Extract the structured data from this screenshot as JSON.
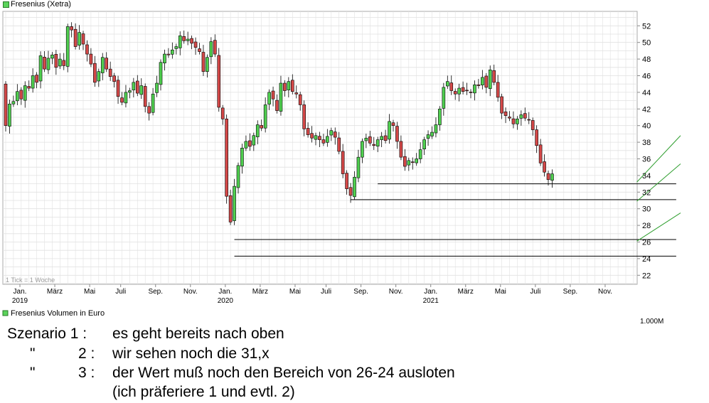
{
  "header": {
    "price_legend": "Fresenius (Xetra)"
  },
  "volume": {
    "legend": "Fresenius Volumen in Euro",
    "axis_label": "1.000M"
  },
  "note": "1 Tick = 1 Woche",
  "colors": {
    "up": "#4fcf4f",
    "down": "#d44848",
    "grid": "#e1e1e1",
    "trendline": "#2e9e2e"
  },
  "chart_data": {
    "type": "candlestick",
    "title": "Fresenius (Xetra)",
    "ylim": [
      21,
      54
    ],
    "y_ticks": [
      22,
      24,
      26,
      28,
      30,
      32,
      34,
      36,
      38,
      40,
      42,
      44,
      46,
      48,
      50,
      52
    ],
    "x_month_ticks": [
      {
        "label": "Jan.",
        "index": 0
      },
      {
        "label": "März",
        "index": 9
      },
      {
        "label": "Mai",
        "index": 18
      },
      {
        "label": "Juli",
        "index": 26
      },
      {
        "label": "Sep.",
        "index": 35
      },
      {
        "label": "Nov.",
        "index": 44
      },
      {
        "label": "Jan.",
        "index": 53
      },
      {
        "label": "März",
        "index": 62
      },
      {
        "label": "Mai",
        "index": 71
      },
      {
        "label": "Juli",
        "index": 79
      },
      {
        "label": "Sep.",
        "index": 88
      },
      {
        "label": "Nov.",
        "index": 97
      },
      {
        "label": "Jan.",
        "index": 106
      },
      {
        "label": "März",
        "index": 115
      },
      {
        "label": "Mai",
        "index": 124
      },
      {
        "label": "Juli",
        "index": 133
      },
      {
        "label": "Sep.",
        "index": 142
      },
      {
        "label": "Nov.",
        "index": 151
      }
    ],
    "x_year_ticks": [
      {
        "label": "2019",
        "index": 0
      },
      {
        "label": "2020",
        "index": 53
      },
      {
        "label": "2021",
        "index": 106
      }
    ],
    "close": [
      40.0,
      42.6,
      42.9,
      44.1,
      43.2,
      44.8,
      44.5,
      46.0,
      45.2,
      48.4,
      46.8,
      48.1,
      48.5,
      47.0,
      48.0,
      47.2,
      51.9,
      51.5,
      49.5,
      51.2,
      49.8,
      48.6,
      47.4,
      45.2,
      46.5,
      48.2,
      46.8,
      45.9,
      45.3,
      43.5,
      42.8,
      44.0,
      44.2,
      45.2,
      43.9,
      44.8,
      42.3,
      41.5,
      43.8,
      45.1,
      47.6,
      48.6,
      48.5,
      49.1,
      49.5,
      50.8,
      50.2,
      50.4,
      49.9,
      49.4,
      48.9,
      46.5,
      48.2,
      50.1,
      48.6,
      42.2,
      40.8,
      31.5,
      28.4,
      32.7,
      35.2,
      37.3,
      38.1,
      37.5,
      38.8,
      40.1,
      39.7,
      42.5,
      44.0,
      43.2,
      41.8,
      45.1,
      44.2,
      45.3,
      44.1,
      43.8,
      42.5,
      39.6,
      38.9,
      38.5,
      38.8,
      38.3,
      37.9,
      38.7,
      39.4,
      38.6,
      36.9,
      34.2,
      32.4,
      31.6,
      33.8,
      36.2,
      38.1,
      38.5,
      37.9,
      37.6,
      38.3,
      38.7,
      38.2,
      40.5,
      40.0,
      38.1,
      36.2,
      35.1,
      35.8,
      35.6,
      36.0,
      37.1,
      38.3,
      38.9,
      39.2,
      40.1,
      42.0,
      44.6,
      45.3,
      44.2,
      43.8,
      44.5,
      44.1,
      44.2,
      44.0,
      44.9,
      44.8,
      45.8,
      44.6,
      46.7,
      45.2,
      43.4,
      41.5,
      41.2,
      40.9,
      40.2,
      40.8,
      41.3,
      40.9,
      40.7,
      39.5,
      37.6,
      35.5,
      34.4,
      33.5,
      34.2
    ],
    "support_lines": [
      {
        "label": "33",
        "value": 33.0,
        "from_index": 96,
        "to_index": 162
      },
      {
        "label": "31,x",
        "value": 31.1,
        "from_index": 89,
        "to_index": 162
      },
      {
        "label": "26",
        "value": 26.3,
        "from_index": 59,
        "to_index": 162
      },
      {
        "label": "24",
        "value": 24.3,
        "from_index": 59,
        "to_index": 162
      }
    ],
    "scenario_lines": [
      {
        "from": [
          150,
          33.2
        ],
        "to": [
          162,
          38.8
        ]
      },
      {
        "from": [
          150,
          30.9
        ],
        "to": [
          162,
          35.4
        ]
      },
      {
        "from": [
          150,
          26.1
        ],
        "to": [
          162,
          29.5
        ]
      }
    ]
  },
  "scenarios": [
    {
      "label": "Szenario 1 :",
      "text": "es geht bereits nach oben"
    },
    {
      "label": "\"",
      "number": "2 :",
      "text": "wir sehen noch die 31,x"
    },
    {
      "label": "\"",
      "number": "3 :",
      "text": "der Wert muß noch den Bereich von 26-24 ausloten"
    },
    {
      "text": "(ich präferiere 1 und evtl. 2)"
    }
  ]
}
